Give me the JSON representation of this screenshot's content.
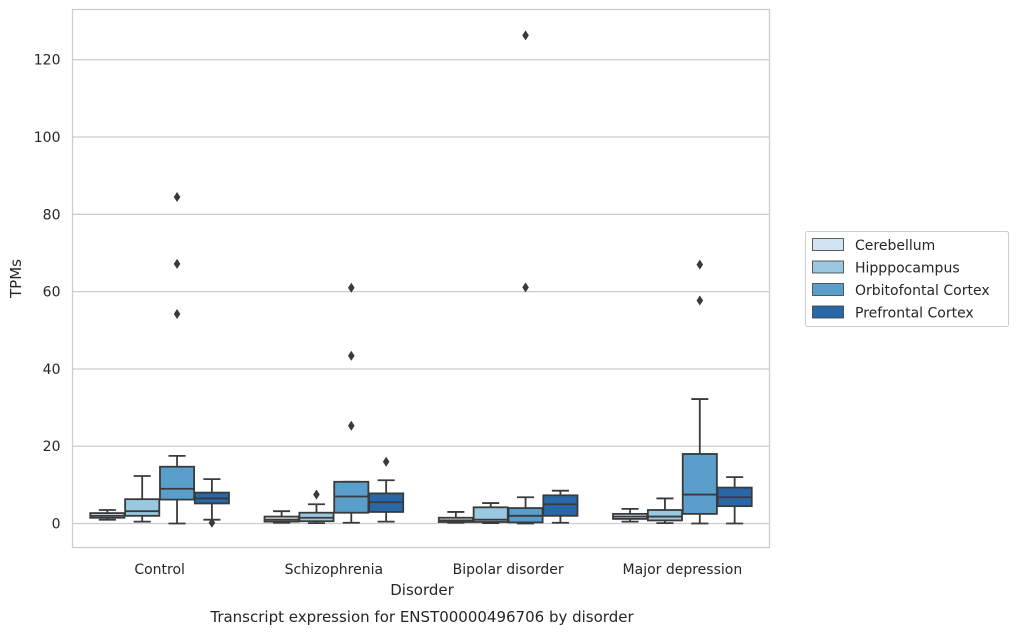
{
  "chart_data": {
    "type": "box",
    "xlabel": "Disorder",
    "ylabel": "TPMs",
    "caption": "Transcript expression for ENST00000496706 by disorder",
    "categories": [
      "Control",
      "Schizophrenia",
      "Bipolar disorder",
      "Major depression"
    ],
    "yticks": [
      0,
      20,
      40,
      60,
      80,
      100,
      120
    ],
    "ylim": [
      -6.2,
      133
    ],
    "grid": "horizontal",
    "legend_position": "right",
    "colors": {
      "Cerebellum": "#d2e3f3",
      "Hipppocampus": "#9ac8e0",
      "Orbitofontal Cortex": "#5a9ecc",
      "Prefrontal Cortex": "#2868a8",
      "edge": "#3a3a3a",
      "grid": "#cccccc",
      "axes": "#cccccc"
    },
    "series": [
      {
        "name": "Cerebellum",
        "boxes": [
          {
            "whisker_low": 1.0,
            "q1": 1.5,
            "median": 2.0,
            "q3": 2.7,
            "whisker_high": 3.5,
            "outliers": []
          },
          {
            "whisker_low": 0.2,
            "q1": 0.5,
            "median": 1.0,
            "q3": 1.8,
            "whisker_high": 3.2,
            "outliers": []
          },
          {
            "whisker_low": 0.2,
            "q1": 0.4,
            "median": 0.8,
            "q3": 1.5,
            "whisker_high": 3.0,
            "outliers": []
          },
          {
            "whisker_low": 0.5,
            "q1": 1.2,
            "median": 1.8,
            "q3": 2.5,
            "whisker_high": 3.8,
            "outliers": []
          }
        ]
      },
      {
        "name": "Hipppocampus",
        "boxes": [
          {
            "whisker_low": 0.5,
            "q1": 2.0,
            "median": 3.2,
            "q3": 6.3,
            "whisker_high": 12.3,
            "outliers": []
          },
          {
            "whisker_low": 0.1,
            "q1": 0.6,
            "median": 1.5,
            "q3": 2.8,
            "whisker_high": 5.0,
            "outliers": [
              7.5
            ]
          },
          {
            "whisker_low": 0.1,
            "q1": 0.4,
            "median": 1.0,
            "q3": 4.2,
            "whisker_high": 5.3,
            "outliers": []
          },
          {
            "whisker_low": 0.1,
            "q1": 0.8,
            "median": 1.8,
            "q3": 3.5,
            "whisker_high": 6.5,
            "outliers": []
          }
        ]
      },
      {
        "name": "Orbitofontal Cortex",
        "boxes": [
          {
            "whisker_low": 0.0,
            "q1": 6.2,
            "median": 9.0,
            "q3": 14.7,
            "whisker_high": 17.5,
            "outliers": [
              54.2,
              67.2,
              84.5
            ]
          },
          {
            "whisker_low": 0.2,
            "q1": 2.8,
            "median": 7.0,
            "q3": 10.8,
            "whisker_high": 10.8,
            "outliers": [
              25.3,
              43.4,
              61.0
            ]
          },
          {
            "whisker_low": 0.0,
            "q1": 0.3,
            "median": 2.0,
            "q3": 4.0,
            "whisker_high": 6.8,
            "outliers": [
              61.1,
              126.3
            ]
          },
          {
            "whisker_low": 0.0,
            "q1": 2.5,
            "median": 7.5,
            "q3": 18.0,
            "whisker_high": 32.2,
            "outliers": [
              57.7,
              67.0
            ]
          }
        ]
      },
      {
        "name": "Prefrontal Cortex",
        "boxes": [
          {
            "whisker_low": 1.0,
            "q1": 5.2,
            "median": 6.5,
            "q3": 8.0,
            "whisker_high": 11.5,
            "outliers": [
              0.2
            ]
          },
          {
            "whisker_low": 0.5,
            "q1": 3.0,
            "median": 5.5,
            "q3": 7.8,
            "whisker_high": 11.2,
            "outliers": [
              16.0
            ]
          },
          {
            "whisker_low": 0.2,
            "q1": 2.0,
            "median": 5.0,
            "q3": 7.3,
            "whisker_high": 8.5,
            "outliers": []
          },
          {
            "whisker_low": 0.0,
            "q1": 4.5,
            "median": 6.8,
            "q3": 9.3,
            "whisker_high": 12.0,
            "outliers": []
          }
        ]
      }
    ]
  }
}
